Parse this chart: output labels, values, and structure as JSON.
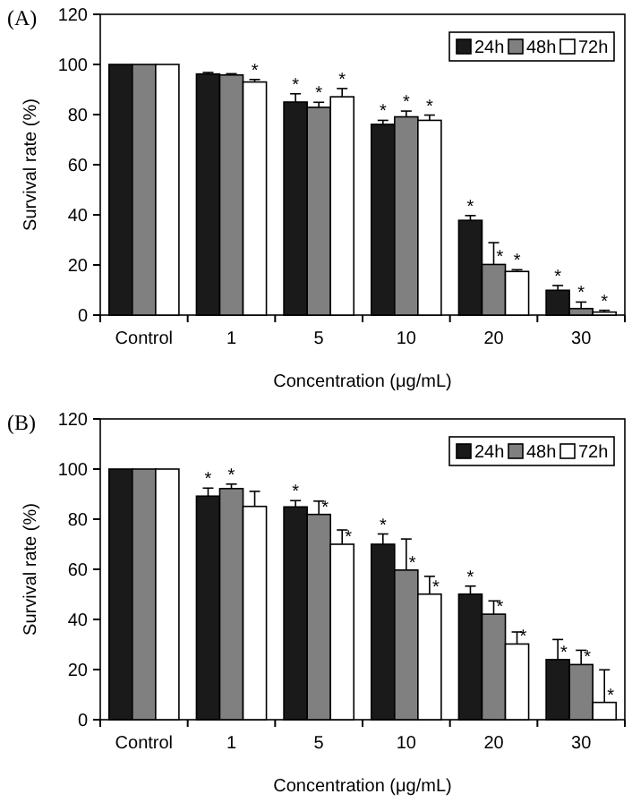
{
  "chart_data": [
    {
      "type": "bar",
      "title": "(A)",
      "xlabel": "Concentration (μg/mL)",
      "ylabel": "Survival  rate (%)",
      "categories": [
        "Control",
        "1",
        "5",
        "10",
        "20",
        "30"
      ],
      "ylim": [
        0,
        120
      ],
      "yticks": [
        0,
        20,
        40,
        60,
        80,
        100,
        120
      ],
      "legend": "top right",
      "series": [
        {
          "name": "24h",
          "color": "#1a1a1a",
          "values": [
            100,
            96.2,
            85.0,
            76.1,
            37.8,
            9.9
          ],
          "errors": [
            null,
            [
              96.2,
              96.8
            ],
            [
              85.0,
              88.3
            ],
            [
              76.1,
              77.7
            ],
            [
              37.8,
              39.7
            ],
            [
              9.9,
              11.8
            ]
          ],
          "value_labels": [
            null,
            null,
            "*",
            "*",
            "*",
            "*"
          ]
        },
        {
          "name": "48h",
          "color": "#808080",
          "values": [
            100,
            95.8,
            82.9,
            79.1,
            20.2,
            2.6
          ],
          "errors": [
            null,
            [
              95.8,
              96.3
            ],
            [
              82.9,
              84.9
            ],
            [
              79.1,
              81.4
            ],
            [
              20.2,
              28.9
            ],
            [
              2.6,
              5.2
            ]
          ],
          "value_labels": [
            null,
            null,
            "*",
            "*",
            "*",
            "*"
          ]
        },
        {
          "name": "72h",
          "color": "#ffffff",
          "values": [
            100,
            93.0,
            87.1,
            77.7,
            17.4,
            1.2
          ],
          "errors": [
            null,
            [
              93.0,
              94.0
            ],
            [
              87.1,
              90.4
            ],
            [
              77.7,
              79.8
            ],
            [
              17.4,
              18.1
            ],
            [
              1.2,
              1.9
            ]
          ],
          "value_labels": [
            null,
            "*",
            "*",
            "*",
            "*",
            "*"
          ]
        }
      ]
    },
    {
      "type": "bar",
      "title": "(B)",
      "xlabel": "Concentration (μg/mL)",
      "ylabel": "Survival  rate (%)",
      "categories": [
        "Control",
        "1",
        "5",
        "10",
        "20",
        "30"
      ],
      "ylim": [
        0,
        120
      ],
      "yticks": [
        0,
        20,
        40,
        60,
        80,
        100,
        120
      ],
      "legend": "top right",
      "series": [
        {
          "name": "24h",
          "color": "#1a1a1a",
          "values": [
            100,
            89.2,
            84.9,
            70.0,
            50.1,
            24.0
          ],
          "errors": [
            null,
            [
              89.2,
              92.4
            ],
            [
              84.9,
              87.4
            ],
            [
              70.0,
              74.1
            ],
            [
              50.1,
              53.3
            ],
            [
              24.0,
              32.0
            ]
          ],
          "value_labels": [
            null,
            "*",
            "*",
            "*",
            "*",
            "*"
          ]
        },
        {
          "name": "48h",
          "color": "#808080",
          "values": [
            100,
            92.2,
            81.9,
            59.7,
            42.1,
            22.0
          ],
          "errors": [
            null,
            [
              92.2,
              94.0
            ],
            [
              81.9,
              87.2
            ],
            [
              59.7,
              72.1
            ],
            [
              42.1,
              47.4
            ],
            [
              22.0,
              27.7
            ]
          ],
          "value_labels": [
            null,
            "*",
            "*",
            "*",
            "*",
            "*"
          ]
        },
        {
          "name": "72h",
          "color": "#ffffff",
          "values": [
            100,
            85.1,
            70.0,
            50.1,
            30.2,
            6.9
          ],
          "errors": [
            null,
            [
              85.1,
              91.1
            ],
            [
              70.0,
              75.7
            ],
            [
              50.1,
              57.2
            ],
            [
              30.2,
              35.0
            ],
            [
              6.9,
              19.9
            ]
          ],
          "value_labels": [
            null,
            null,
            "*",
            "*",
            "*",
            "*"
          ]
        }
      ]
    }
  ]
}
